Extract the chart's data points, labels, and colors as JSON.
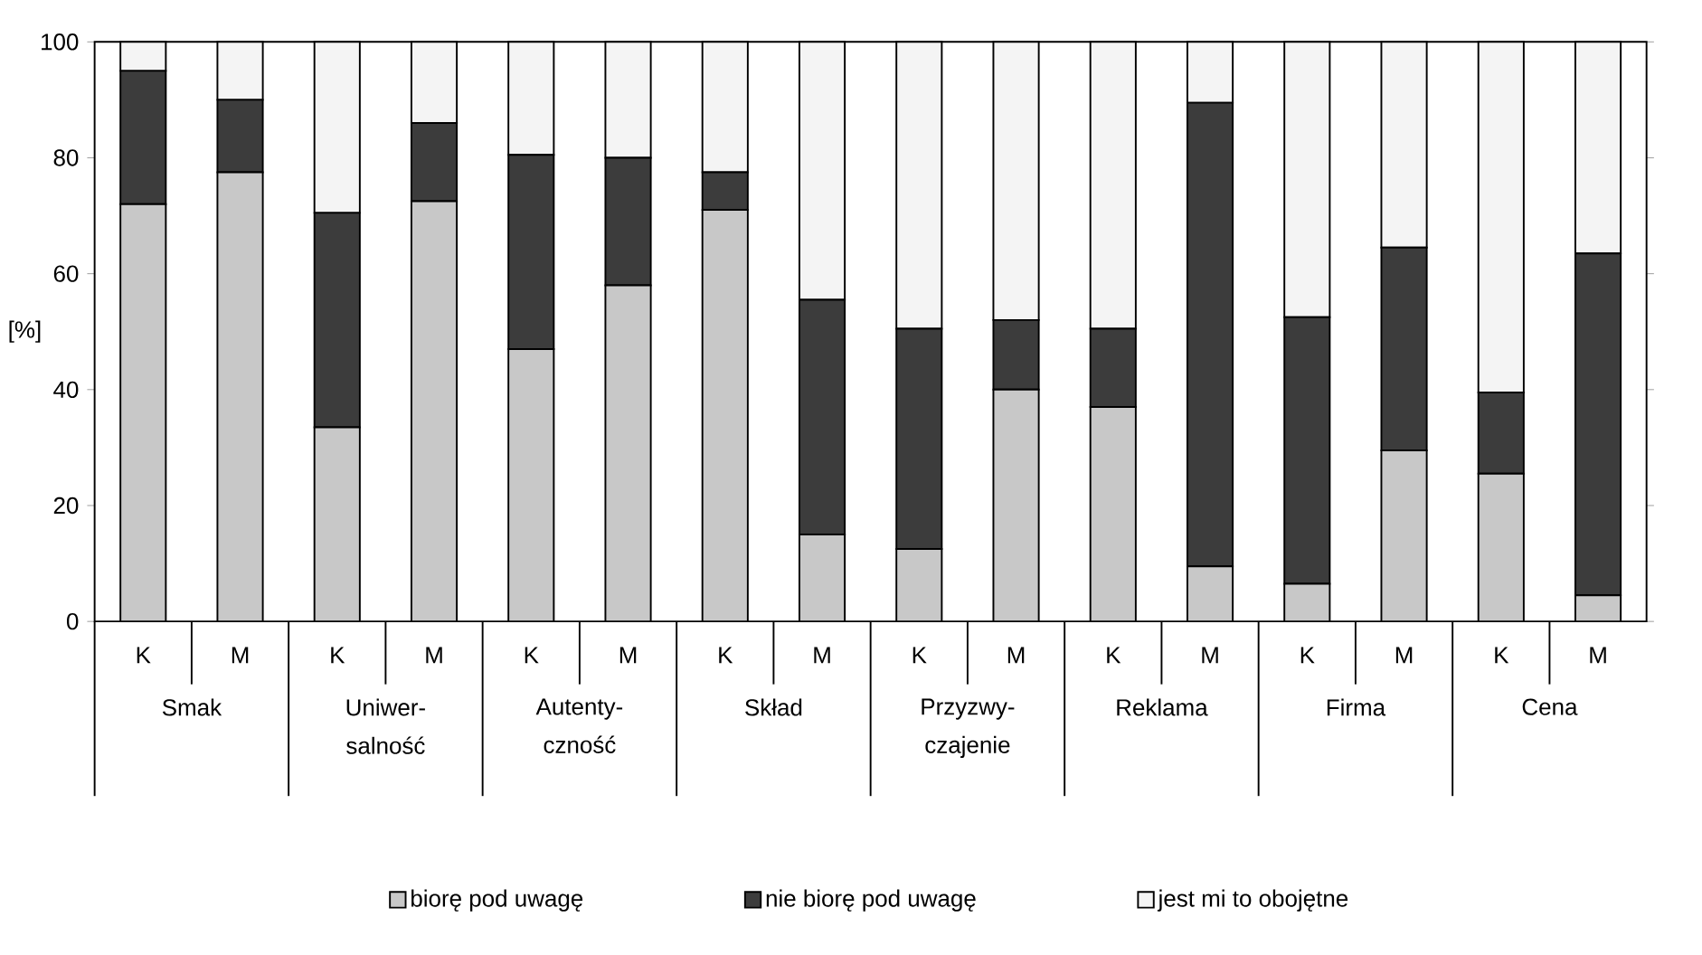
{
  "chart_data": {
    "type": "bar",
    "stacked": true,
    "ylabel": "[%]",
    "categories": [
      "K",
      "M",
      "K",
      "M",
      "K",
      "M",
      "K",
      "M",
      "K",
      "M",
      "K",
      "M",
      "K",
      "M",
      "K",
      "M"
    ],
    "annotations": [
      "Smak",
      "Uniwer- salność",
      "Autenty- czność",
      "Skład",
      "Przyzwy- czajenie",
      "Reklama",
      "Firma",
      "Cena"
    ],
    "series": [
      {
        "name": "biorę pod uwagę",
        "color": "#c8c8c8",
        "values": [
          72,
          77.5,
          33.5,
          72.5,
          47,
          58,
          71,
          15,
          12.5,
          40,
          37,
          9.5,
          6.5,
          29.5,
          25.5,
          4.5
        ]
      },
      {
        "name": "nie biorę pod uwagę",
        "color": "#3c3c3c",
        "values": [
          23,
          12.5,
          37,
          13.5,
          33.5,
          22,
          6.5,
          40.5,
          38,
          12,
          13.5,
          80,
          46,
          35,
          14,
          59
        ]
      },
      {
        "name": "jest mi to obojętne",
        "color": "#f4f4f4",
        "values": [
          5,
          10,
          29.5,
          14,
          19.5,
          20,
          22.5,
          44.5,
          49.5,
          48,
          49.5,
          10.5,
          47.5,
          35.5,
          60.5,
          36.5
        ]
      }
    ],
    "ylim": [
      0,
      100
    ],
    "yticks": [
      0,
      20,
      40,
      60,
      80,
      100
    ],
    "grid": false,
    "legend": "bottom"
  }
}
